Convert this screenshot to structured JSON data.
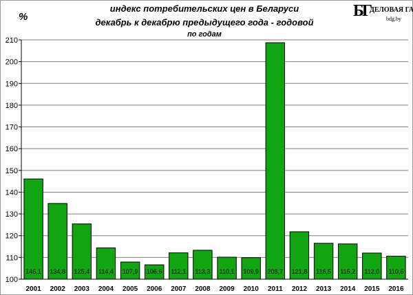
{
  "logo": {
    "mark": "БГ",
    "name": "ДЕЛОВАЯ ГАЗЕТА",
    "site": "bdg.by"
  },
  "chart_data": {
    "type": "bar",
    "title_lines": [
      "индекс потребительских цен в Беларуси",
      "декабрь к декабрю предыдущего года - годовой",
      "по годам"
    ],
    "ylabel": "%",
    "xlabel": "",
    "ylim": [
      100,
      210
    ],
    "yticks": [
      100,
      110,
      120,
      130,
      140,
      150,
      160,
      170,
      180,
      190,
      200,
      210
    ],
    "grid": "horizontal",
    "categories": [
      "2001",
      "2002",
      "2003",
      "2004",
      "2005",
      "2006",
      "2007",
      "2008",
      "2009",
      "2010",
      "2011",
      "2012",
      "2013",
      "2014",
      "2015",
      "2016"
    ],
    "values": [
      146.1,
      134.8,
      125.4,
      114.4,
      107.9,
      106.6,
      112.1,
      113.3,
      110.1,
      109.9,
      208.7,
      121.8,
      116.5,
      116.2,
      112.0,
      110.6
    ],
    "data_labels": [
      "146,1",
      "134,8",
      "125,4",
      "114,4",
      "107,9",
      "106,6",
      "112,1",
      "113,3",
      "110,1",
      "109,9",
      "208,7",
      "121,8",
      "116,5",
      "116,2",
      "112,0",
      "110,6"
    ],
    "bar_color": "#11a511",
    "bar_edge_color": "#000000"
  }
}
